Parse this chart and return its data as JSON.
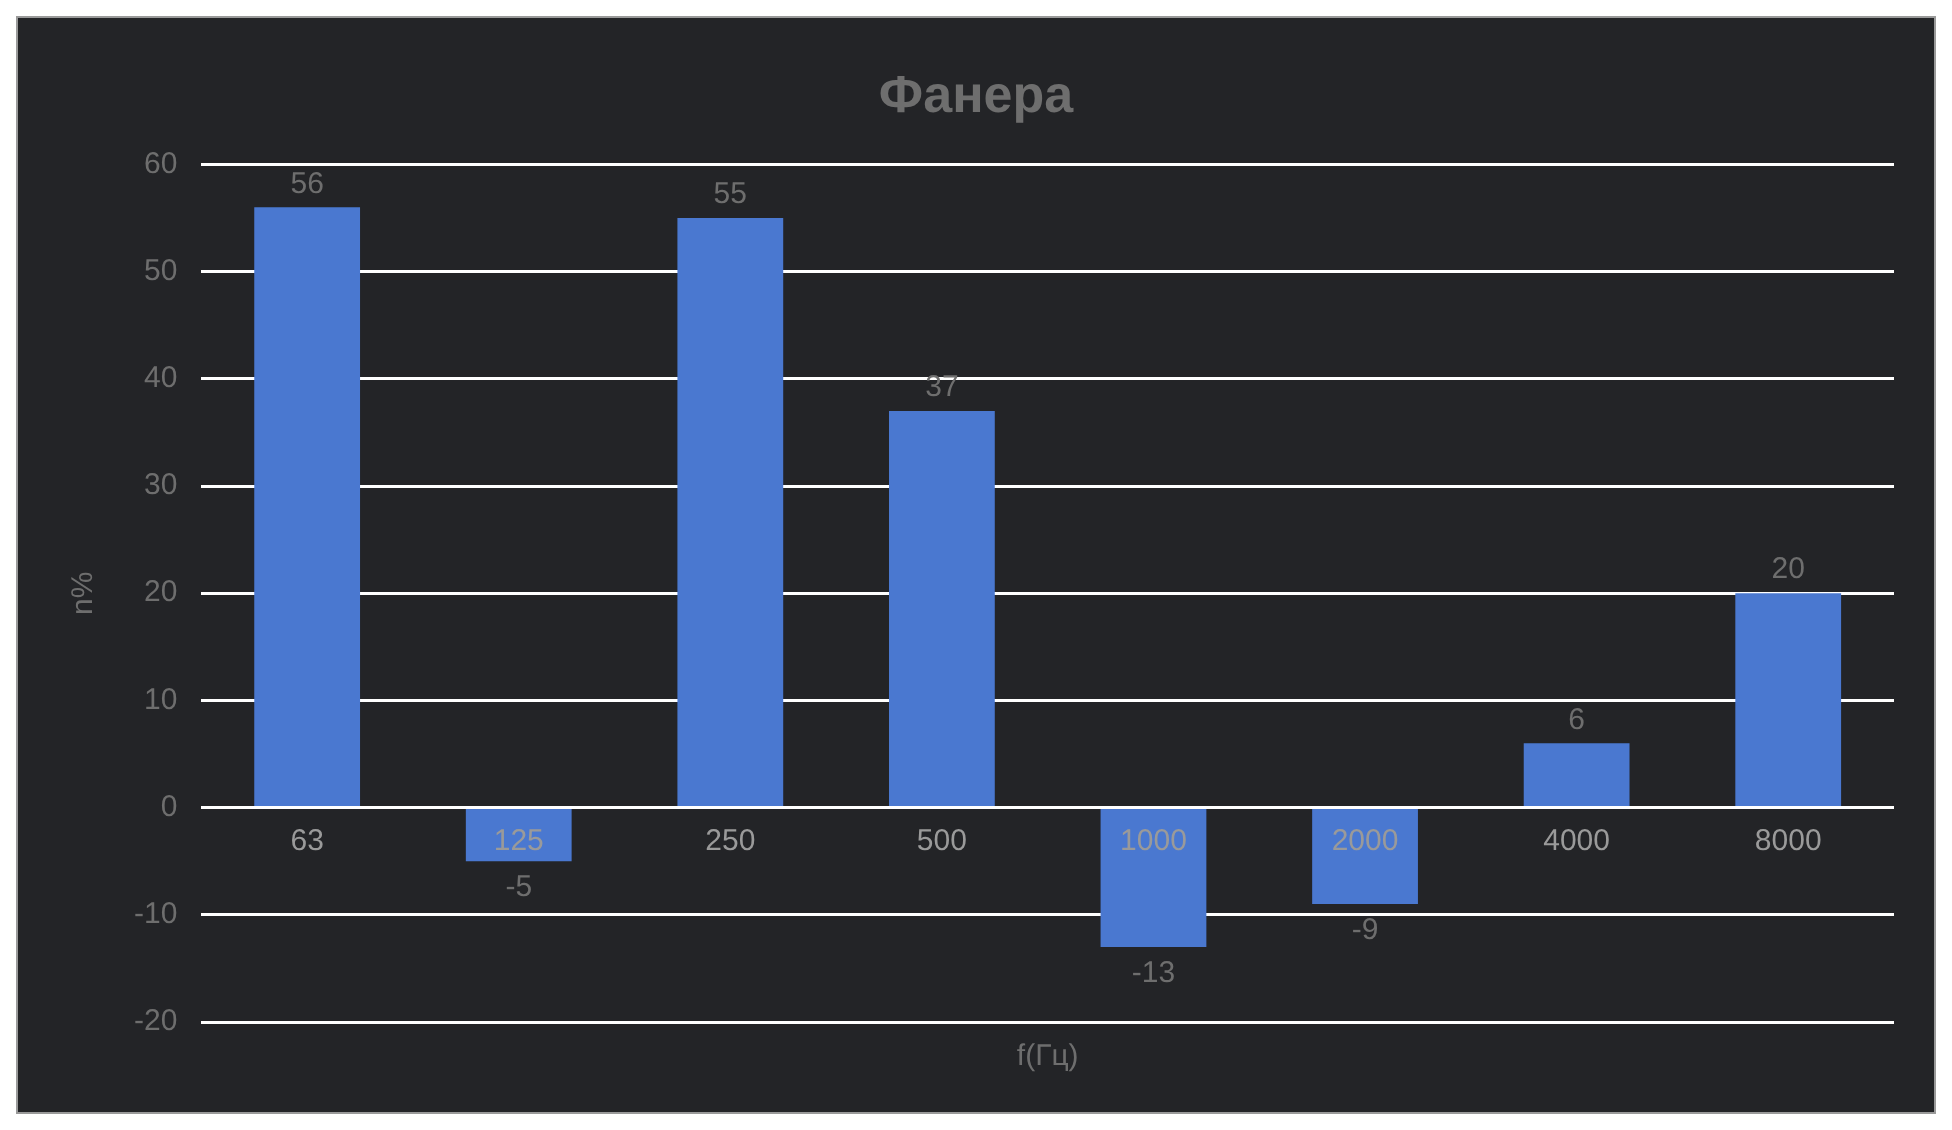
{
  "chart_data": {
    "type": "bar",
    "title": "Фанера",
    "xlabel": "f(Гц)",
    "ylabel": "n%",
    "categories": [
      "63",
      "125",
      "250",
      "500",
      "1000",
      "2000",
      "4000",
      "8000"
    ],
    "values": [
      56,
      -5,
      55,
      37,
      -13,
      -9,
      6,
      20
    ],
    "color": "#4a78d0",
    "ylim": [
      -20,
      60
    ],
    "yticks": [
      -20,
      -10,
      0,
      10,
      20,
      30,
      40,
      50,
      60
    ],
    "grid": "y",
    "data_labels": true,
    "legend": false
  }
}
